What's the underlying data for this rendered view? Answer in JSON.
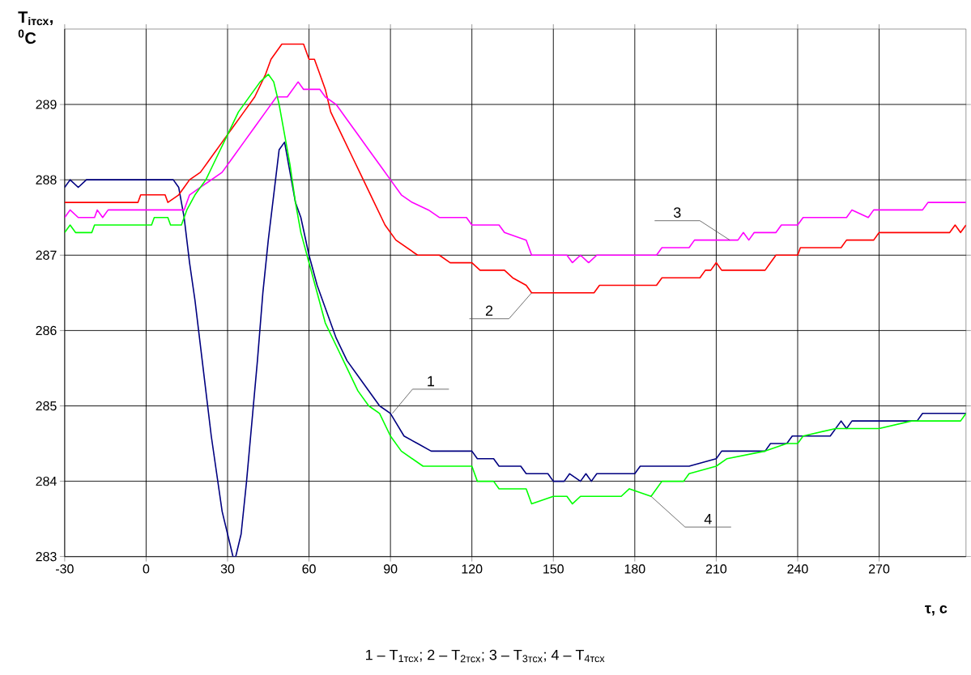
{
  "chart_data": {
    "type": "line",
    "xlabel": "τ, с",
    "ylabel": "T$_{iтсх}$, $^{0}$C",
    "xlim": [
      -30,
      302
    ],
    "ylim": [
      283,
      290
    ],
    "xticks": [
      -30,
      0,
      30,
      60,
      90,
      120,
      150,
      180,
      210,
      240,
      270
    ],
    "yticks": [
      283,
      284,
      285,
      286,
      287,
      288,
      289
    ],
    "grid": true,
    "line_style": "solid",
    "series": [
      {
        "color": "#000080",
        "x": [
          -30,
          -28,
          -25,
          -22,
          10,
          12,
          14,
          16,
          18,
          20,
          22,
          24,
          26,
          28,
          30,
          32,
          33,
          35,
          37,
          39,
          41,
          43,
          45,
          47,
          49,
          51,
          53,
          55,
          57,
          60,
          63,
          66,
          70,
          74,
          78,
          82,
          86,
          90,
          95,
          100,
          105,
          120,
          122,
          128,
          130,
          138,
          140,
          148,
          150,
          154,
          156,
          160,
          162,
          164,
          166,
          180,
          182,
          200,
          210,
          212,
          228,
          230,
          236,
          238,
          252,
          254,
          256,
          258,
          260,
          284,
          286,
          302
        ],
        "values": [
          287.9,
          288.0,
          287.9,
          288.0,
          288.0,
          287.9,
          287.5,
          286.9,
          286.4,
          285.8,
          285.2,
          284.6,
          284.1,
          283.6,
          283.3,
          283.0,
          283.0,
          283.3,
          284.0,
          284.8,
          285.6,
          286.5,
          287.2,
          287.8,
          288.4,
          288.5,
          288.1,
          287.7,
          287.5,
          287.0,
          286.6,
          286.3,
          285.9,
          285.6,
          285.4,
          285.2,
          285.0,
          284.9,
          284.6,
          284.5,
          284.4,
          284.4,
          284.3,
          284.3,
          284.2,
          284.2,
          284.1,
          284.1,
          284.0,
          284.0,
          284.1,
          284.0,
          284.1,
          284.0,
          284.1,
          284.1,
          284.2,
          284.2,
          284.3,
          284.4,
          284.4,
          284.5,
          284.5,
          284.6,
          284.6,
          284.7,
          284.8,
          284.7,
          284.8,
          284.8,
          284.9,
          284.9
        ]
      },
      {
        "color": "#ff0000",
        "x": [
          -30,
          -3,
          -2,
          7,
          8,
          12,
          14,
          16,
          20,
          24,
          28,
          32,
          36,
          40,
          44,
          46,
          48,
          50,
          58,
          60,
          62,
          64,
          66,
          68,
          72,
          76,
          80,
          84,
          88,
          92,
          96,
          100,
          108,
          112,
          120,
          123,
          132,
          135,
          140,
          142,
          165,
          167,
          188,
          190,
          204,
          206,
          208,
          210,
          212,
          228,
          230,
          232,
          240,
          241,
          256,
          258,
          268,
          270,
          296,
          298,
          300,
          302
        ],
        "values": [
          287.7,
          287.7,
          287.8,
          287.8,
          287.7,
          287.8,
          287.9,
          288.0,
          288.1,
          288.3,
          288.5,
          288.7,
          288.9,
          289.1,
          289.4,
          289.6,
          289.7,
          289.8,
          289.8,
          289.6,
          289.6,
          289.4,
          289.2,
          288.9,
          288.6,
          288.3,
          288.0,
          287.7,
          287.4,
          287.2,
          287.1,
          287.0,
          287.0,
          286.9,
          286.9,
          286.8,
          286.8,
          286.7,
          286.6,
          286.5,
          286.5,
          286.6,
          286.6,
          286.7,
          286.7,
          286.8,
          286.8,
          286.9,
          286.8,
          286.8,
          286.9,
          287.0,
          287.0,
          287.1,
          287.1,
          287.2,
          287.2,
          287.3,
          287.3,
          287.4,
          287.3,
          287.4
        ]
      },
      {
        "color": "#ff00ff",
        "x": [
          -30,
          -28,
          -25,
          -19,
          -18,
          -16,
          -14,
          14,
          16,
          20,
          24,
          28,
          32,
          36,
          40,
          44,
          48,
          52,
          54,
          56,
          58,
          60,
          64,
          66,
          70,
          74,
          78,
          82,
          86,
          90,
          94,
          98,
          104,
          108,
          118,
          120,
          130,
          132,
          140,
          142,
          155,
          157,
          160,
          163,
          166,
          188,
          190,
          200,
          202,
          218,
          220,
          222,
          224,
          232,
          234,
          240,
          242,
          258,
          260,
          266,
          268,
          286,
          288,
          302
        ],
        "values": [
          287.5,
          287.6,
          287.5,
          287.5,
          287.6,
          287.5,
          287.6,
          287.6,
          287.8,
          287.9,
          288.0,
          288.1,
          288.3,
          288.5,
          288.7,
          288.9,
          289.1,
          289.1,
          289.2,
          289.3,
          289.2,
          289.2,
          289.2,
          289.1,
          289.0,
          288.8,
          288.6,
          288.4,
          288.2,
          288.0,
          287.8,
          287.7,
          287.6,
          287.5,
          287.5,
          287.4,
          287.4,
          287.3,
          287.2,
          287.0,
          287.0,
          286.9,
          287.0,
          286.9,
          287.0,
          287.0,
          287.1,
          287.1,
          287.2,
          287.2,
          287.3,
          287.2,
          287.3,
          287.3,
          287.4,
          287.4,
          287.5,
          287.5,
          287.6,
          287.5,
          287.6,
          287.6,
          287.7,
          287.7
        ]
      },
      {
        "color": "#00ff00",
        "x": [
          -30,
          -28,
          -26,
          -20,
          -19,
          2,
          3,
          8,
          9,
          13,
          15,
          18,
          22,
          26,
          30,
          34,
          38,
          42,
          45,
          47,
          49,
          51,
          53,
          55,
          57,
          60,
          63,
          66,
          70,
          74,
          78,
          82,
          86,
          90,
          94,
          98,
          102,
          120,
          122,
          128,
          130,
          140,
          142,
          150,
          155,
          157,
          160,
          175,
          178,
          186,
          190,
          198,
          200,
          210,
          214,
          228,
          236,
          240,
          242,
          254,
          260,
          270,
          282,
          300,
          302
        ],
        "values": [
          287.3,
          287.4,
          287.3,
          287.3,
          287.4,
          287.4,
          287.5,
          287.5,
          287.4,
          287.4,
          287.6,
          287.8,
          288.0,
          288.3,
          288.6,
          288.9,
          289.1,
          289.3,
          289.4,
          289.3,
          289.0,
          288.6,
          288.2,
          287.7,
          287.3,
          286.9,
          286.5,
          286.1,
          285.8,
          285.5,
          285.2,
          285.0,
          284.9,
          284.6,
          284.4,
          284.3,
          284.2,
          284.2,
          284.0,
          284.0,
          283.9,
          283.9,
          283.7,
          283.8,
          283.8,
          283.7,
          283.8,
          283.8,
          283.9,
          283.8,
          284.0,
          284.0,
          284.1,
          284.2,
          284.3,
          284.4,
          284.5,
          284.5,
          284.6,
          284.7,
          284.7,
          284.7,
          284.8,
          284.8,
          284.9
        ]
      }
    ],
    "annotations": [
      {
        "text": "1",
        "x": 90.7,
        "y": 284.9
      },
      {
        "text": "2",
        "x": 142,
        "y": 286.5
      },
      {
        "text": "3",
        "x": 215,
        "y": 287.2
      },
      {
        "text": "4",
        "x": 186,
        "y": 283.8
      },
      "1 – T$_{1тсх}$;  2 – T$_{2тсх}$;  3 – T$_{3тсх}$;  4 – T$_{4тсх}$"
    ]
  }
}
